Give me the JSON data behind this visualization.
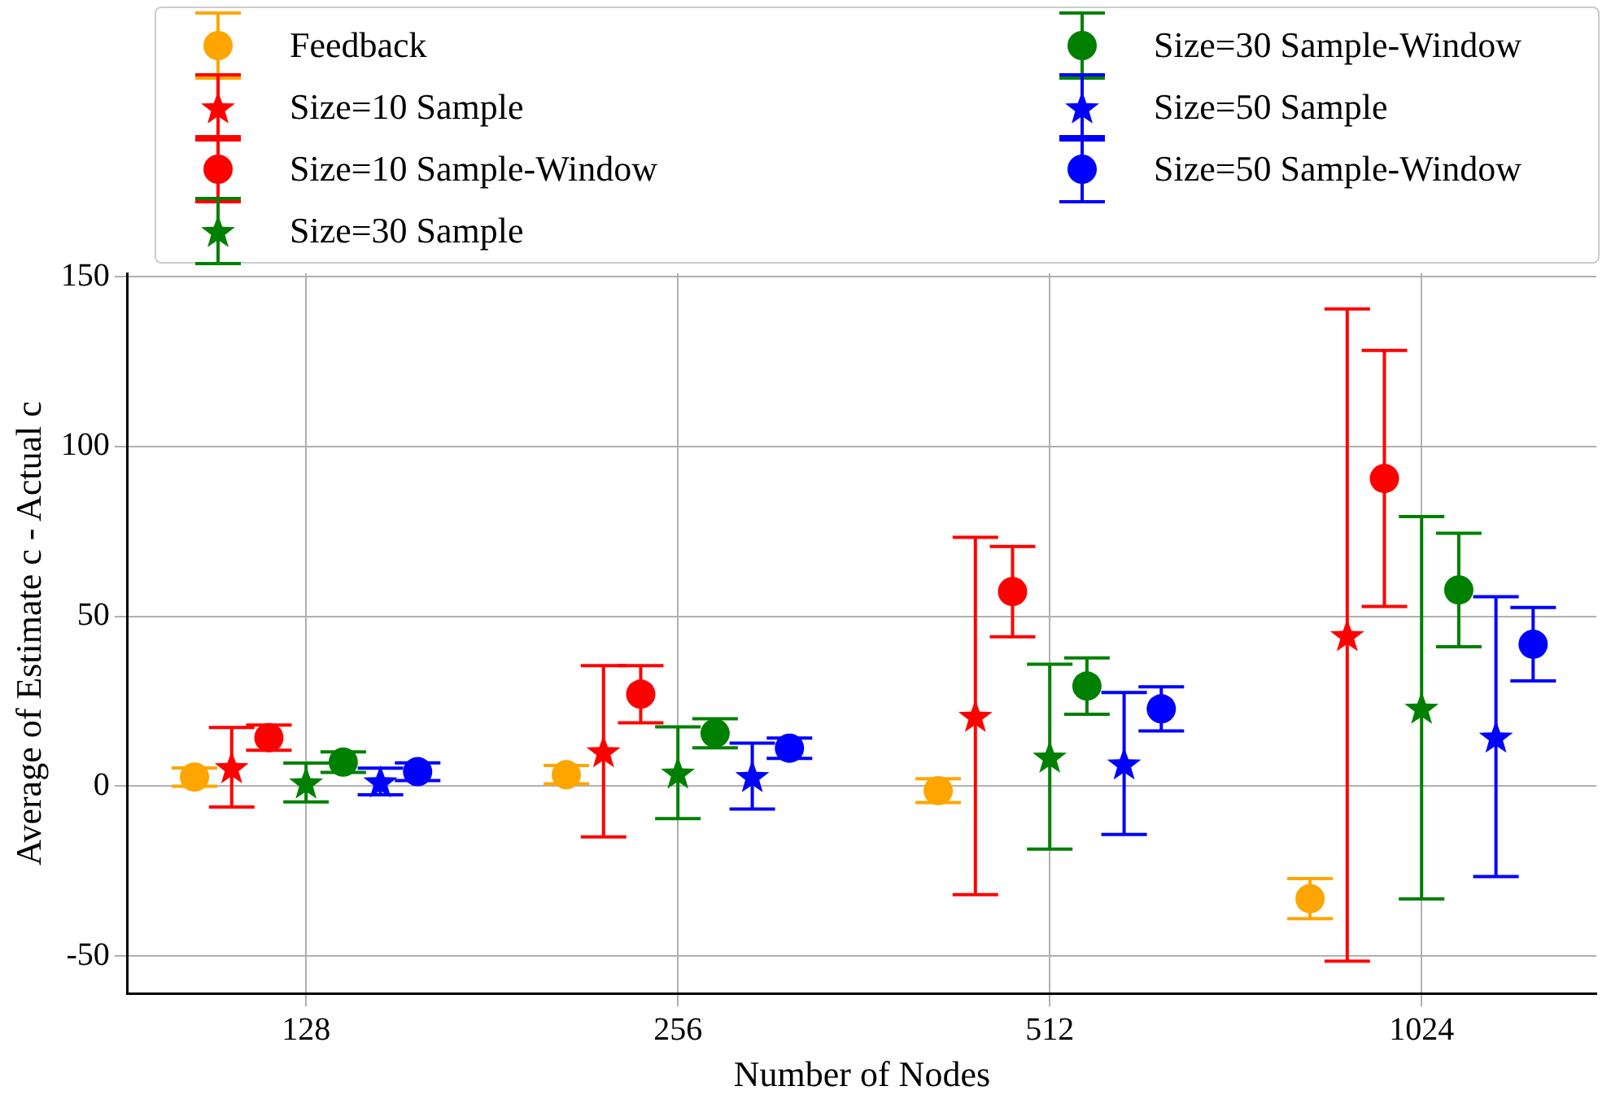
{
  "chart_data": {
    "type": "scatter",
    "xlabel": "Number of Nodes",
    "ylabel": "Average of Estimate c - Actual c",
    "categories": [
      "128",
      "256",
      "512",
      "1024"
    ],
    "ylim": [
      -61,
      151
    ],
    "yticks": [
      -50,
      0,
      50,
      100,
      150
    ],
    "grid": true,
    "legend": "top",
    "series": [
      {
        "name": "Feedback",
        "color": "#ffa500",
        "marker": "circle",
        "values": [
          2.7,
          3.4,
          -1.3,
          -33.1
        ],
        "errors": [
          2.7,
          2.7,
          3.5,
          5.9
        ]
      },
      {
        "name": "Size=10 Sample",
        "color": "#ff0000",
        "marker": "star",
        "values": [
          5.6,
          10.3,
          20.7,
          44.5
        ],
        "errors": [
          11.7,
          25.2,
          52.6,
          96
        ]
      },
      {
        "name": "Size=10 Sample-Window",
        "color": "#ff0000",
        "marker": "circle",
        "values": [
          14.3,
          27.1,
          57.3,
          90.6
        ],
        "errors": [
          3.7,
          8.4,
          13.3,
          37.7
        ]
      },
      {
        "name": "Size=30 Sample",
        "color": "#008000",
        "marker": "star",
        "values": [
          1.1,
          4.0,
          8.7,
          23.1
        ],
        "errors": [
          5.7,
          13.5,
          27.2,
          56.3
        ]
      },
      {
        "name": "Size=30 Sample-Window",
        "color": "#008000",
        "marker": "circle",
        "values": [
          7.1,
          15.6,
          29.5,
          57.8
        ],
        "errors": [
          3,
          4.3,
          8.3,
          16.7
        ]
      },
      {
        "name": "Size=50 Sample",
        "color": "#0000ff",
        "marker": "star",
        "values": [
          1.4,
          3.0,
          6.7,
          14.6
        ],
        "errors": [
          3.9,
          9.7,
          20.9,
          41.2
        ]
      },
      {
        "name": "Size=50 Sample-Window",
        "color": "#0000ff",
        "marker": "circle",
        "values": [
          4.3,
          11.2,
          22.8,
          41.8
        ],
        "errors": [
          2.6,
          3,
          6.5,
          10.8
        ]
      }
    ]
  }
}
